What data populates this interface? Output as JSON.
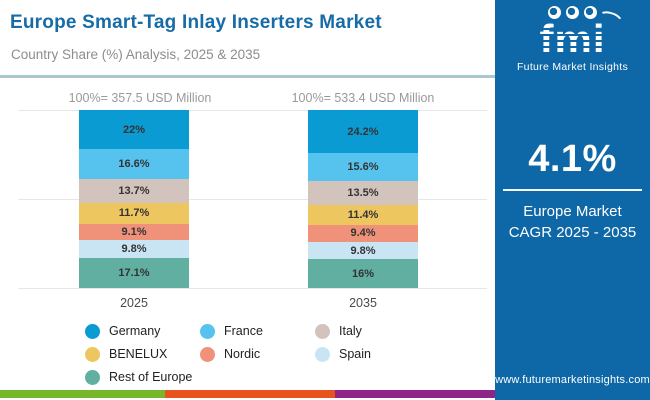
{
  "header": {
    "title": "Europe Smart-Tag Inlay Inserters Market",
    "subtitle": "Country Share (%) Analysis, 2025 & 2035",
    "title_color": "#176CA7"
  },
  "chart_data": {
    "type": "bar",
    "variant": "stacked-100-percent",
    "unit": "% share of market",
    "categories": [
      "2025",
      "2035"
    ],
    "totals": [
      "100%= 357.5 USD Million",
      "100%= 533.4 USD Million"
    ],
    "series": [
      {
        "name": "Germany",
        "color": "#0B9BD3",
        "values": [
          22,
          24.2
        ],
        "labels": [
          "22%",
          "24.2%"
        ]
      },
      {
        "name": "France",
        "color": "#56C2EE",
        "values": [
          16.6,
          15.6
        ],
        "labels": [
          "16.6%",
          "15.6%"
        ]
      },
      {
        "name": "Italy",
        "color": "#D2C4BD",
        "values": [
          13.7,
          13.5
        ],
        "labels": [
          "13.7%",
          "13.5%"
        ]
      },
      {
        "name": "BENELUX",
        "color": "#EDC65F",
        "values": [
          11.7,
          11.4
        ],
        "labels": [
          "11.7%",
          "11.4%"
        ]
      },
      {
        "name": "Nordic",
        "color": "#F0917A",
        "values": [
          9.1,
          9.4
        ],
        "labels": [
          "9.1%",
          "9.4%"
        ]
      },
      {
        "name": "Spain",
        "color": "#C9E5F4",
        "values": [
          9.8,
          9.8
        ],
        "labels": [
          "9.8%",
          "9.8%"
        ]
      },
      {
        "name": "Rest of Europe",
        "color": "#60AFA1",
        "values": [
          17.1,
          16
        ],
        "labels": [
          "17.1%",
          "16%"
        ]
      }
    ],
    "stack_order_top_to_bottom": true,
    "grid": true,
    "legend_position": "bottom",
    "ylim": [
      0,
      100
    ]
  },
  "side_panel": {
    "bg_color": "#0E67A6",
    "logo_text": "fmi",
    "logo_subtext": "Future Market Insights",
    "cagr_value": "4.1%",
    "cagr_line1": "Europe Market",
    "cagr_line2": "CAGR 2025 - 2035",
    "website": "www.futuremarketinsights.com"
  },
  "footer_colors": [
    "#76B82A",
    "#E8521D",
    "#8F2488"
  ]
}
